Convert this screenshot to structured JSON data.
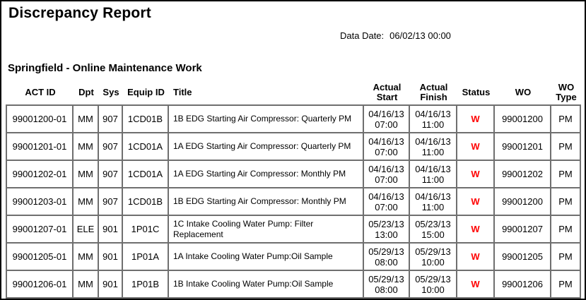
{
  "page": {
    "title": "Discrepancy Report",
    "data_date_label": "Data Date:",
    "data_date_value": "06/02/13 00:00",
    "section_title": "Springfield - Online Maintenance Work"
  },
  "table": {
    "headers": [
      "ACT ID",
      "Dpt",
      "Sys",
      "Equip ID",
      "Title",
      "Actual\nStart",
      "Actual\nFinish",
      "Status",
      "WO",
      "WO\nType"
    ],
    "status_color": "#ff0000",
    "border_color": "#6f6f6f",
    "rows": [
      {
        "act_id": "99001200-01",
        "dpt": "MM",
        "sys": "907",
        "equip_id": "1CD01B",
        "title": "1B EDG Starting Air Compressor: Quarterly PM",
        "actual_start": "04/16/13\n07:00",
        "actual_finish": "04/16/13\n11:00",
        "status": "W",
        "wo": "99001200",
        "wo_type": "PM"
      },
      {
        "act_id": "99001201-01",
        "dpt": "MM",
        "sys": "907",
        "equip_id": "1CD01A",
        "title": "1A EDG Starting Air Compressor: Quarterly PM",
        "actual_start": "04/16/13\n07:00",
        "actual_finish": "04/16/13\n11:00",
        "status": "W",
        "wo": "99001201",
        "wo_type": "PM"
      },
      {
        "act_id": "99001202-01",
        "dpt": "MM",
        "sys": "907",
        "equip_id": "1CD01A",
        "title": "1A EDG Starting Air Compressor: Monthly PM",
        "actual_start": "04/16/13\n07:00",
        "actual_finish": "04/16/13\n11:00",
        "status": "W",
        "wo": "99001202",
        "wo_type": "PM"
      },
      {
        "act_id": "99001203-01",
        "dpt": "MM",
        "sys": "907",
        "equip_id": "1CD01B",
        "title": "1B EDG Starting Air Compressor: Monthly PM",
        "actual_start": "04/16/13\n07:00",
        "actual_finish": "04/16/13\n11:00",
        "status": "W",
        "wo": "99001200",
        "wo_type": "PM"
      },
      {
        "act_id": "99001207-01",
        "dpt": "ELE",
        "sys": "901",
        "equip_id": "1P01C",
        "title": "1C Intake Cooling Water Pump: Filter Replacement",
        "actual_start": "05/23/13\n13:00",
        "actual_finish": "05/23/13\n15:00",
        "status": "W",
        "wo": "99001207",
        "wo_type": "PM"
      },
      {
        "act_id": "99001205-01",
        "dpt": "MM",
        "sys": "901",
        "equip_id": "1P01A",
        "title": "1A Intake Cooling Water Pump:Oil Sample",
        "actual_start": "05/29/13\n08:00",
        "actual_finish": "05/29/13\n10:00",
        "status": "W",
        "wo": "99001205",
        "wo_type": "PM"
      },
      {
        "act_id": "99001206-01",
        "dpt": "MM",
        "sys": "901",
        "equip_id": "1P01B",
        "title": "1B Intake Cooling Water Pump:Oil Sample",
        "actual_start": "05/29/13\n08:00",
        "actual_finish": "05/29/13\n10:00",
        "status": "W",
        "wo": "99001206",
        "wo_type": "PM"
      }
    ]
  }
}
